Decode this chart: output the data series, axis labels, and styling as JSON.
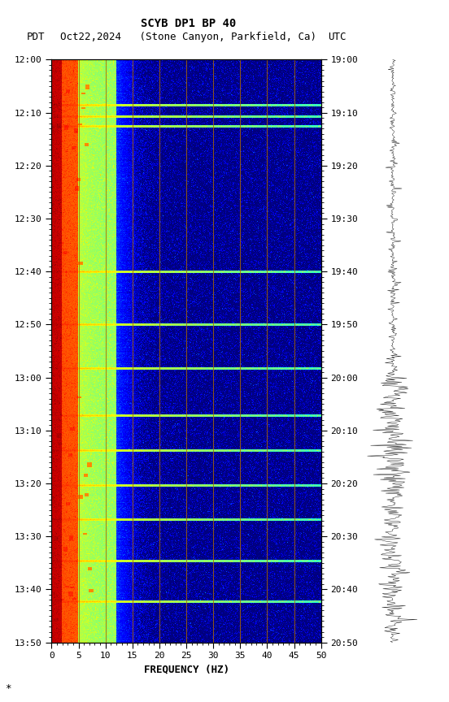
{
  "title_line1": "SCYB DP1 BP 40",
  "title_line2_left": "PDT",
  "title_line2_mid": "Oct22,2024   (Stone Canyon, Parkfield, Ca)",
  "title_line2_right": "UTC",
  "xlabel": "FREQUENCY (HZ)",
  "freq_min": 0,
  "freq_max": 50,
  "freq_ticks": [
    0,
    5,
    10,
    15,
    20,
    25,
    30,
    35,
    40,
    45,
    50
  ],
  "time_left_labels": [
    "12:00",
    "12:10",
    "12:20",
    "12:30",
    "12:40",
    "12:50",
    "13:00",
    "13:10",
    "13:20",
    "13:30",
    "13:40",
    "13:50"
  ],
  "time_right_labels": [
    "19:00",
    "19:10",
    "19:20",
    "19:30",
    "19:40",
    "19:50",
    "20:00",
    "20:10",
    "20:20",
    "20:30",
    "20:40",
    "20:50"
  ],
  "n_time_steps": 720,
  "n_freq_steps": 500,
  "vertical_lines_freq": [
    5,
    10,
    15,
    20,
    25,
    30,
    35,
    40,
    45
  ],
  "vertical_line_color": "#AA6600",
  "bg_color": "white",
  "font_family": "monospace",
  "font_size_title": 10,
  "font_size_subtitle": 9,
  "font_size_ticks": 8,
  "spec_vmin": -2.5,
  "spec_vmax": 1.5
}
